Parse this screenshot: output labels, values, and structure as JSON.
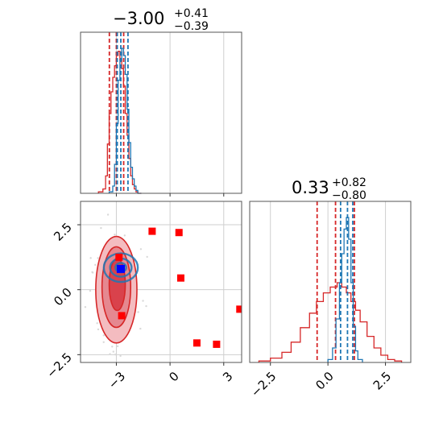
{
  "chart_data": [
    {
      "panel": "hist-x",
      "type": "histogram",
      "title": {
        "median": "−3.00",
        "plus": "+0.41",
        "minus": "−0.39"
      },
      "xlim": [
        -5.0,
        4.0
      ],
      "grid": true,
      "series": [
        {
          "name": "",
          "color": "#d62728",
          "bins": [
            -4.0,
            -3.75,
            -3.6,
            -3.5,
            -3.4,
            -3.3,
            -3.2,
            -3.1,
            -3.0,
            -2.9,
            -2.8,
            -2.7,
            -2.6,
            -2.5,
            -2.4,
            -2.3,
            -2.2,
            -2.1,
            -2.0,
            -1.9,
            -1.8,
            -1.6
          ],
          "heights": [
            0.01,
            0.03,
            0.12,
            0.34,
            0.55,
            0.7,
            0.8,
            0.88,
            0.95,
            0.98,
            0.92,
            0.86,
            0.74,
            0.55,
            0.4,
            0.24,
            0.12,
            0.06,
            0.03,
            0.01,
            0.0
          ],
          "quantiles": [
            -3.39,
            -3.0,
            -2.59
          ]
        },
        {
          "name": "",
          "color": "#1f77b4",
          "bins": [
            -3.4,
            -3.2,
            -3.1,
            -3.0,
            -2.9,
            -2.8,
            -2.7,
            -2.6,
            -2.5,
            -2.4,
            -2.3,
            -2.2,
            -2.1,
            -2.0,
            -1.9,
            -1.8,
            -1.6
          ],
          "heights": [
            0.01,
            0.05,
            0.2,
            0.48,
            0.78,
            0.92,
            1.0,
            0.95,
            0.82,
            0.58,
            0.35,
            0.18,
            0.1,
            0.05,
            0.02,
            0.0
          ],
          "quantiles": [
            -2.95,
            -2.75,
            -2.35
          ]
        }
      ]
    },
    {
      "panel": "hist-y",
      "type": "histogram",
      "title": {
        "median": "0.33",
        "plus": "+0.82",
        "minus": "−0.80"
      },
      "xlim": [
        -3.4,
        3.6
      ],
      "xticks": [
        "−2.5",
        "0.0",
        "2.5"
      ],
      "xtick_values": [
        -2.5,
        0.0,
        2.5
      ],
      "grid": true,
      "series": [
        {
          "name": "",
          "color": "#d62728",
          "bins": [
            -3.0,
            -2.5,
            -2.0,
            -1.6,
            -1.2,
            -0.8,
            -0.5,
            -0.2,
            0.1,
            0.4,
            0.6,
            0.8,
            1.0,
            1.2,
            1.4,
            1.7,
            2.0,
            2.3,
            2.6,
            2.9,
            3.2
          ],
          "heights": [
            0.01,
            0.03,
            0.07,
            0.14,
            0.24,
            0.34,
            0.42,
            0.48,
            0.52,
            0.55,
            0.52,
            0.48,
            0.42,
            0.36,
            0.28,
            0.18,
            0.1,
            0.05,
            0.02,
            0.01
          ],
          "quantiles": [
            -0.47,
            0.33,
            1.15
          ]
        },
        {
          "name": "",
          "color": "#1f77b4",
          "bins": [
            0.0,
            0.2,
            0.35,
            0.5,
            0.6,
            0.7,
            0.8,
            0.9,
            1.0,
            1.1,
            1.2,
            1.3,
            1.5
          ],
          "heights": [
            0.02,
            0.1,
            0.3,
            0.55,
            0.75,
            0.92,
            1.0,
            0.85,
            0.55,
            0.25,
            0.08,
            0.02
          ],
          "quantiles": [
            0.55,
            0.85,
            1.08
          ]
        }
      ]
    },
    {
      "panel": "scatter-2d",
      "type": "scatter",
      "xlim": [
        -5.0,
        4.0
      ],
      "ylim": [
        -2.8,
        3.4
      ],
      "xticks": [
        "−3",
        "0",
        "3"
      ],
      "xtick_values": [
        -3,
        0,
        3
      ],
      "yticks": [
        "−2.5",
        "0.0",
        "2.5"
      ],
      "ytick_values": [
        -2.5,
        0.0,
        2.5
      ],
      "grid": true,
      "red_contours": [
        {
          "cx": -3.0,
          "cy": 0.0,
          "rx": 1.15,
          "ry": 2.05,
          "fill": "#f4bcc0"
        },
        {
          "cx": -3.0,
          "cy": 0.1,
          "rx": 0.8,
          "ry": 1.55,
          "fill": "#e58890"
        },
        {
          "cx": -2.95,
          "cy": 0.2,
          "rx": 0.45,
          "ry": 1.0,
          "fill": "#d9424c"
        }
      ],
      "blue_contours": [
        {
          "cx": -2.75,
          "cy": 0.85,
          "rx": 0.95,
          "ry": 0.55
        },
        {
          "cx": -2.75,
          "cy": 0.85,
          "rx": 0.6,
          "ry": 0.35
        },
        {
          "cx": -2.75,
          "cy": 0.85,
          "rx": 0.3,
          "ry": 0.18
        }
      ],
      "red_squares": [
        {
          "x": -1.0,
          "y": 2.25
        },
        {
          "x": 0.5,
          "y": 2.2
        },
        {
          "x": 0.6,
          "y": 0.45
        },
        {
          "x": 3.9,
          "y": -0.75
        },
        {
          "x": 1.5,
          "y": -2.05
        },
        {
          "x": 2.6,
          "y": -2.1
        },
        {
          "x": -2.7,
          "y": -1.0
        },
        {
          "x": -2.85,
          "y": 1.25
        }
      ],
      "blue_square": {
        "x": -2.75,
        "y": 0.8
      },
      "red_color": "#d62728",
      "blue_color": "#1f77b4",
      "square_red": "#ff0000",
      "square_blue": "#0000ff"
    }
  ]
}
